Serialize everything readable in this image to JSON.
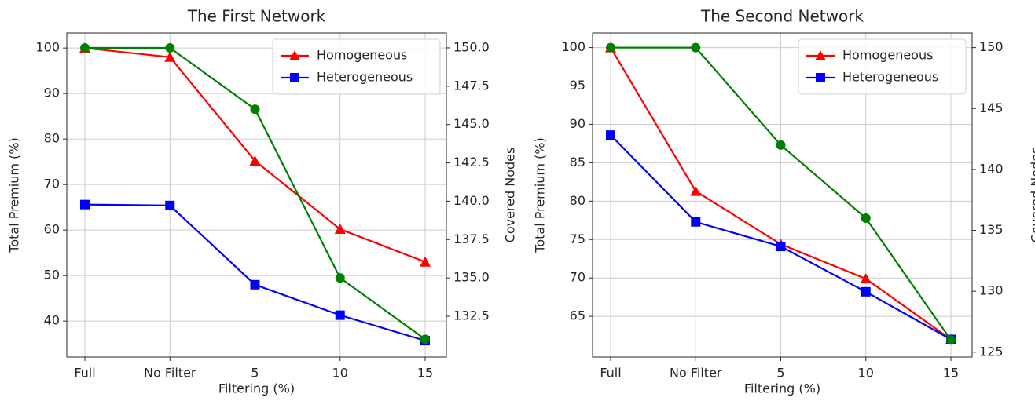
{
  "chart_data": [
    {
      "type": "line",
      "title": "The First Network",
      "xlabel": "Filtering (%)",
      "ylabel": "Total Premium (%)",
      "y2label": "Covered Nodes",
      "categories": [
        "Full",
        "No Filter",
        "5",
        "10",
        "15"
      ],
      "series": [
        {
          "name": "Homogeneous",
          "color": "#ff0000",
          "marker": "triangle",
          "values": [
            100,
            98,
            75.2,
            60.2,
            53
          ]
        },
        {
          "name": "Heterogeneous",
          "color": "#0000ff",
          "marker": "square",
          "values": [
            65.6,
            65.4,
            48,
            41.3,
            35.7
          ]
        },
        {
          "color": "#008000",
          "marker": "circle",
          "axis": "y2",
          "values": [
            150,
            150,
            146,
            135,
            131
          ]
        }
      ],
      "ylim": [
        32.1,
        103.3
      ],
      "yticks": [
        40,
        50,
        60,
        70,
        80,
        90,
        100
      ],
      "y2lim": [
        129.84,
        150.97
      ],
      "y2ticks": [
        132.5,
        {
          "value": 135,
          "label": "135.0"
        },
        137.5,
        {
          "value": 140,
          "label": "140.0"
        },
        142.5,
        {
          "value": 145,
          "label": "145.0"
        },
        147.5,
        {
          "value": 150,
          "label": "150.0"
        }
      ],
      "grid": true,
      "legend": "upper right"
    },
    {
      "type": "line",
      "title": "The Second Network",
      "xlabel": "Filtering (%)",
      "ylabel": "Total Premium (%)",
      "y2label": "Covered Nodes",
      "categories": [
        "Full",
        "No Filter",
        "5",
        "10",
        "15"
      ],
      "series": [
        {
          "name": "Homogeneous",
          "color": "#ff0000",
          "marker": "triangle",
          "values": [
            100,
            81.3,
            74.4,
            69.9,
            62
          ]
        },
        {
          "name": "Heterogeneous",
          "color": "#0000ff",
          "marker": "square",
          "values": [
            88.6,
            77.3,
            74.1,
            68.2,
            62
          ]
        },
        {
          "color": "#008000",
          "marker": "circle",
          "axis": "y2",
          "values": [
            150,
            150,
            142,
            136,
            126
          ]
        }
      ],
      "ylim": [
        59.7,
        101.9
      ],
      "yticks": [
        65,
        70,
        75,
        80,
        85,
        90,
        95,
        100
      ],
      "y2lim": [
        124.6,
        151.2
      ],
      "y2ticks": [
        125,
        130,
        135,
        140,
        145,
        150
      ],
      "grid": true,
      "legend": "upper right"
    }
  ]
}
